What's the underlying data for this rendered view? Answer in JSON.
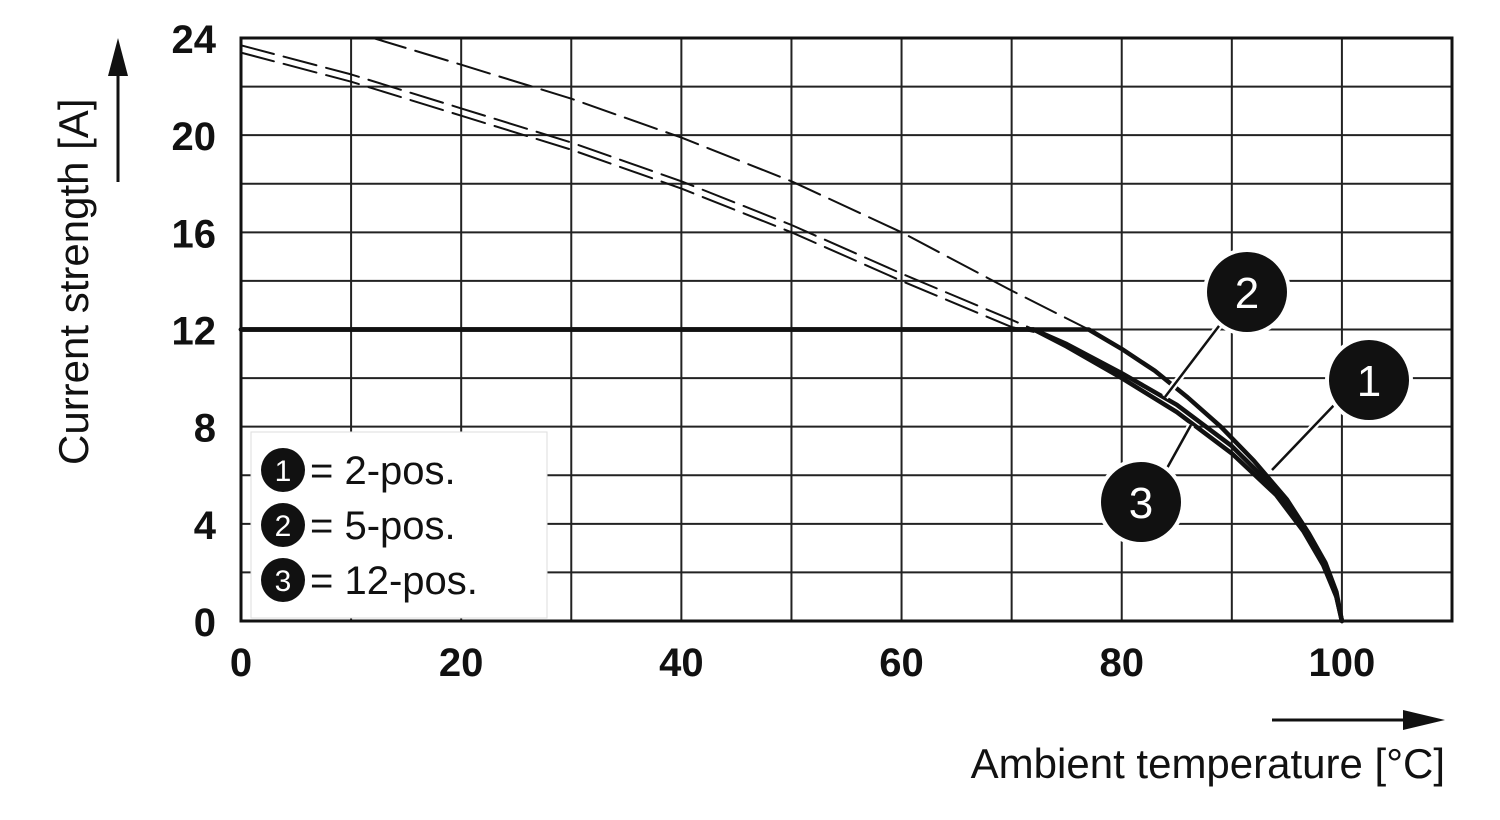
{
  "chart_data": {
    "type": "line",
    "xlabel": "Ambient temperature [°C]",
    "ylabel": "Current strength [A]",
    "xlim": [
      0,
      110
    ],
    "ylim": [
      0,
      24
    ],
    "x_ticks": [
      0,
      20,
      40,
      60,
      80,
      100
    ],
    "y_ticks": [
      0,
      4,
      8,
      12,
      16,
      20,
      24
    ],
    "grid": true,
    "grid_x_step": 10,
    "grid_y_step": 2,
    "legend": {
      "placement": "bottom-left",
      "entries": [
        {
          "number": "1",
          "text": "= 2-pos."
        },
        {
          "number": "2",
          "text": "= 5-pos."
        },
        {
          "number": "3",
          "text": "= 12-pos."
        }
      ]
    },
    "series": [
      {
        "badge": "1",
        "style": "solid",
        "x": [
          0,
          77,
          80,
          83,
          86,
          89,
          92,
          95,
          97,
          98.5,
          99.5,
          100
        ],
        "y": [
          12,
          12,
          11.2,
          10.3,
          9.2,
          8.0,
          6.6,
          5.0,
          3.6,
          2.4,
          1.2,
          0
        ]
      },
      {
        "badge": "2",
        "style": "solid",
        "x": [
          0,
          72,
          75,
          80,
          85,
          90,
          94,
          96.5,
          98.3,
          99.5,
          100
        ],
        "y": [
          12,
          12,
          11.4,
          10.2,
          8.9,
          7.2,
          5.4,
          3.9,
          2.4,
          1.0,
          0
        ]
      },
      {
        "badge": "3",
        "style": "solid",
        "x": [
          0,
          72,
          75,
          80,
          85,
          90,
          94,
          96.5,
          98.3,
          99.5,
          100
        ],
        "y": [
          12,
          12,
          11.3,
          10.0,
          8.6,
          6.9,
          5.2,
          3.7,
          2.3,
          1.0,
          0
        ]
      },
      {
        "badge": "",
        "style": "dashed",
        "x": [
          12,
          20,
          30,
          40,
          50,
          60,
          70,
          77
        ],
        "y": [
          24,
          22.9,
          21.5,
          19.9,
          18.1,
          16.0,
          13.6,
          12
        ]
      },
      {
        "badge": "",
        "style": "dashed",
        "x": [
          0,
          10,
          20,
          30,
          40,
          50,
          60,
          70,
          72
        ],
        "y": [
          23.7,
          22.5,
          21.1,
          19.7,
          18.1,
          16.3,
          14.3,
          12.4,
          12
        ]
      },
      {
        "badge": "",
        "style": "dashed",
        "x": [
          0,
          10,
          20,
          30,
          40,
          50,
          60,
          70,
          72
        ],
        "y": [
          23.4,
          22.2,
          20.8,
          19.4,
          17.8,
          16.0,
          14.0,
          12.1,
          11.9
        ]
      }
    ]
  }
}
